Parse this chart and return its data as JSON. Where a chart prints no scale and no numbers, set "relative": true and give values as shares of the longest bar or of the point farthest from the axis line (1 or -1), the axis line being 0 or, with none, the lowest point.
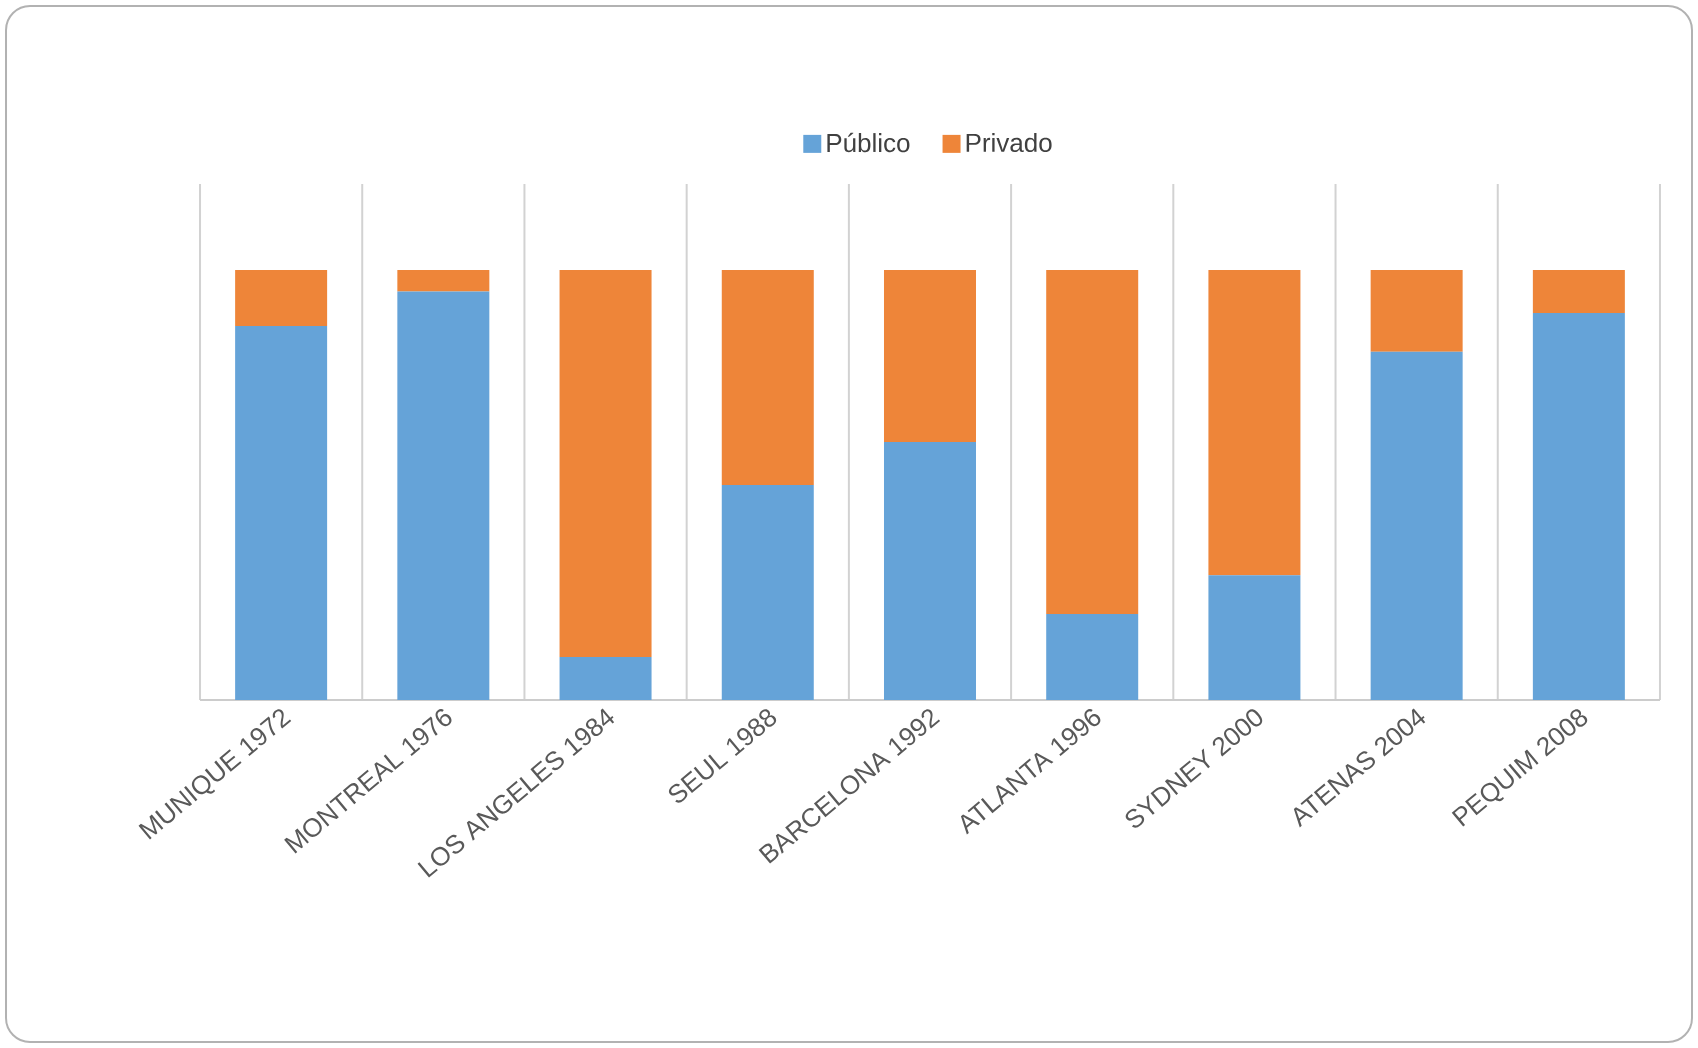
{
  "chart_data": {
    "type": "bar",
    "stacked": true,
    "relative": true,
    "grid": "x",
    "legend": "top",
    "categories": [
      "MUNIQUE 1972",
      "MONTREAL 1976",
      "LOS ANGELES 1984",
      "SEUL 1988",
      "BARCELONA 1992",
      "ATLANTA 1996",
      "SYDNEY 2000",
      "ATENAS 2004",
      "PEQUIM 2008"
    ],
    "series": [
      {
        "name": "Público",
        "color": "#65a3d8",
        "values": [
          0.87,
          0.95,
          0.1,
          0.5,
          0.6,
          0.2,
          0.29,
          0.81,
          0.9
        ]
      },
      {
        "name": "Privado",
        "color": "#ee8539",
        "values": [
          0.13,
          0.05,
          0.9,
          0.5,
          0.4,
          0.8,
          0.71,
          0.19,
          0.1
        ]
      }
    ]
  }
}
